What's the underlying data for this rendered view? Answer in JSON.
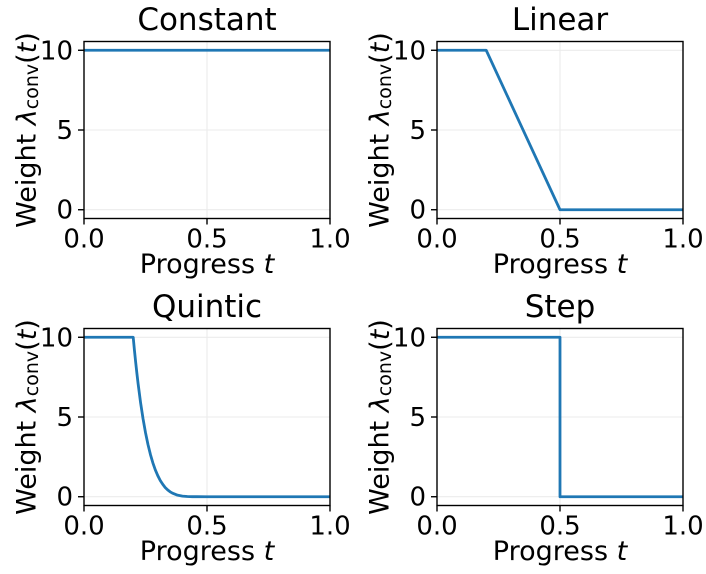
{
  "figure": {
    "background": "#ffffff",
    "text_color": "#000000",
    "line_color": "#1f77b4",
    "grid_color": "#ebebeb",
    "spine_color": "#000000",
    "axis": {
      "xlim": [
        0,
        1
      ],
      "ylim": [
        -0.55,
        10.55
      ],
      "x_ticks": [
        0,
        0.5,
        1
      ],
      "x_tick_labels": [
        "0.0",
        "0.5",
        "1.0"
      ],
      "y_ticks": [
        0,
        5,
        10
      ],
      "y_tick_labels": [
        "0",
        "5",
        "10"
      ],
      "grid": true,
      "xlabel": {
        "text": "Progress",
        "italic_var": "t"
      },
      "ylabel": {
        "text": "Weight",
        "symbol": "λ",
        "subscript": "conv",
        "open_paren": "(",
        "italic_var": "t",
        "close_paren": ")"
      }
    }
  },
  "chart_data": [
    {
      "type": "line",
      "title": "Constant",
      "xlabel": "Progress t",
      "ylabel": "Weight λ_conv(t)",
      "x": [
        0,
        1
      ],
      "y": [
        10,
        10
      ]
    },
    {
      "type": "line",
      "title": "Linear",
      "xlabel": "Progress t",
      "ylabel": "Weight λ_conv(t)",
      "x": [
        0,
        0.2,
        0.5,
        1
      ],
      "y": [
        10,
        10,
        0,
        0
      ]
    },
    {
      "type": "line",
      "title": "Quintic",
      "xlabel": "Progress t",
      "ylabel": "Weight λ_conv(t)",
      "x": [
        0,
        0.2,
        0.205,
        0.21,
        0.215,
        0.22,
        0.23,
        0.24,
        0.25,
        0.26,
        0.27,
        0.28,
        0.29,
        0.3,
        0.31,
        0.32,
        0.33,
        0.34,
        0.35,
        0.36,
        0.38,
        0.4,
        0.42,
        0.44,
        0.46,
        0.5,
        1
      ],
      "y": [
        10,
        10,
        9.19,
        8.44,
        7.74,
        7.08,
        5.9,
        4.89,
        4.02,
        3.28,
        2.65,
        2.12,
        1.68,
        1.32,
        1.02,
        0.78,
        0.58,
        0.43,
        0.31,
        0.22,
        0.1,
        0.04,
        0.013,
        0.003,
        0.001,
        0,
        0
      ]
    },
    {
      "type": "line",
      "title": "Step",
      "xlabel": "Progress t",
      "ylabel": "Weight λ_conv(t)",
      "x": [
        0,
        0.5,
        0.5,
        1
      ],
      "y": [
        10,
        10,
        0,
        0
      ]
    }
  ]
}
